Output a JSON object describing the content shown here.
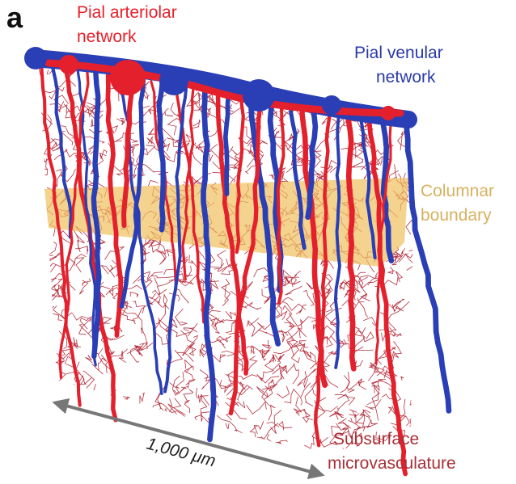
{
  "panel_label": "a",
  "labels": {
    "arteriolar": [
      "Pial arteriolar",
      "network"
    ],
    "venular": [
      "Pial venular",
      "network"
    ],
    "columnar": [
      "Columnar",
      "boundary"
    ],
    "subsurface": [
      "Subsurface",
      "microvasculature"
    ]
  },
  "scale_bar": "1,000 μm"
}
